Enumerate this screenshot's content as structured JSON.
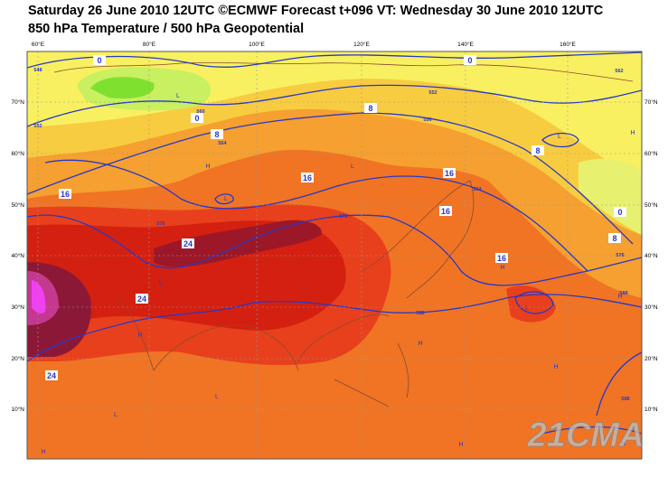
{
  "header": {
    "title": "Saturday 26 June 2010 12UTC ©ECMWF Forecast t+096 VT: Wednesday 30 June 2010 12UTC",
    "subtitle": "850 hPa Temperature / 500 hPa Geopotential"
  },
  "map": {
    "lon_labels": [
      "60°E",
      "80°E",
      "100°E",
      "120°E",
      "140°E",
      "160°E"
    ],
    "lat_labels": [
      "70°N",
      "60°N",
      "50°N",
      "40°N",
      "30°N",
      "20°N",
      "10°N"
    ],
    "contour_labels": [
      "0",
      "0",
      "0",
      "0",
      "8",
      "8",
      "8",
      "8",
      "16",
      "16",
      "16",
      "16",
      "16",
      "24",
      "24",
      "24",
      "548",
      "552",
      "560",
      "564",
      "552",
      "556",
      "562",
      "564",
      "576",
      "576",
      "576",
      "588",
      "588",
      "588"
    ],
    "pressure_centers": [
      "L",
      "H",
      "L",
      "L",
      "L",
      "H",
      "H",
      "L",
      "H",
      "H",
      "H",
      "H",
      "L",
      "L",
      "H",
      "H",
      "H",
      "L"
    ],
    "watermark": "21CMA"
  }
}
